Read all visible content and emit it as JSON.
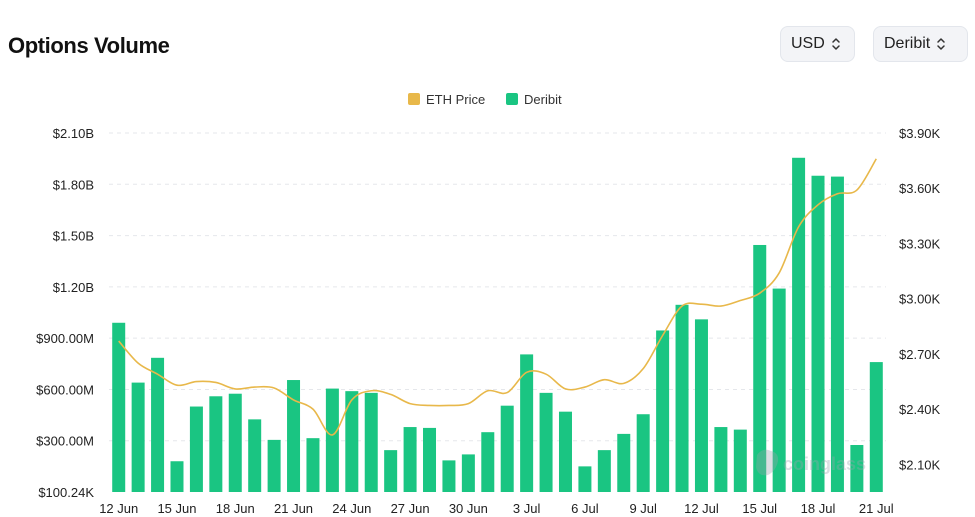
{
  "header": {
    "title": "Options Volume"
  },
  "controls": {
    "currency": "USD",
    "exchange": "Deribit"
  },
  "colors": {
    "bar": "#1ac582",
    "line": "#e8b84a",
    "grid": "#e5e7eb",
    "axis_text": "#222222"
  },
  "icons": {
    "selector": "chevron-up-down-icon"
  },
  "watermark": "coinglass",
  "chart_data": {
    "type": "bar",
    "legend_position": "top-center",
    "grid": true,
    "legend": [
      {
        "label": "ETH Price",
        "color": "#e8b84a"
      },
      {
        "label": "Deribit",
        "color": "#1ac582"
      }
    ],
    "left_axis": {
      "ylim": [
        100240,
        2100000000
      ],
      "ticks": [
        100240,
        300000000,
        600000000,
        900000000,
        1200000000,
        1500000000,
        1800000000,
        2100000000
      ],
      "tick_labels": [
        "$100.24K",
        "$300.00M",
        "$600.00M",
        "$900.00M",
        "$1.20B",
        "$1.50B",
        "$1.80B",
        "$2.10B"
      ]
    },
    "right_axis": {
      "ylim": [
        1950,
        3900
      ],
      "ticks": [
        2100,
        2400,
        2700,
        3000,
        3300,
        3600,
        3900
      ],
      "tick_labels": [
        "$2.10K",
        "$2.40K",
        "$2.70K",
        "$3.00K",
        "$3.30K",
        "$3.60K",
        "$3.90K"
      ]
    },
    "x_tick_labels": [
      "12 Jun",
      "15 Jun",
      "18 Jun",
      "21 Jun",
      "24 Jun",
      "27 Jun",
      "30 Jun",
      "3 Jul",
      "6 Jul",
      "9 Jul",
      "12 Jul",
      "15 Jul",
      "18 Jul",
      "21 Jul"
    ],
    "categories": [
      "12 Jun",
      "13 Jun",
      "14 Jun",
      "15 Jun",
      "16 Jun",
      "17 Jun",
      "18 Jun",
      "19 Jun",
      "20 Jun",
      "21 Jun",
      "22 Jun",
      "23 Jun",
      "24 Jun",
      "25 Jun",
      "26 Jun",
      "27 Jun",
      "28 Jun",
      "29 Jun",
      "30 Jun",
      "1 Jul",
      "2 Jul",
      "3 Jul",
      "4 Jul",
      "5 Jul",
      "6 Jul",
      "7 Jul",
      "8 Jul",
      "9 Jul",
      "10 Jul",
      "11 Jul",
      "12 Jul",
      "13 Jul",
      "14 Jul",
      "15 Jul",
      "16 Jul",
      "17 Jul",
      "18 Jul",
      "19 Jul",
      "20 Jul",
      "21 Jul"
    ],
    "series": [
      {
        "name": "Deribit",
        "type": "bar",
        "axis": "left",
        "values": [
          990000000,
          640000000,
          785000000,
          180000000,
          500000000,
          560000000,
          575000000,
          425000000,
          305000000,
          655000000,
          315000000,
          605000000,
          590000000,
          580000000,
          245000000,
          380000000,
          375000000,
          185000000,
          220000000,
          350000000,
          505000000,
          805000000,
          580000000,
          470000000,
          150000000,
          245000000,
          340000000,
          455000000,
          945000000,
          1095000000,
          1010000000,
          380000000,
          365000000,
          1445000000,
          1190000000,
          1955000000,
          1850000000,
          1845000000,
          275000000,
          760000000
        ]
      },
      {
        "name": "ETH Price",
        "type": "line",
        "axis": "right",
        "values": [
          2770,
          2650,
          2590,
          2530,
          2550,
          2545,
          2510,
          2520,
          2515,
          2450,
          2400,
          2260,
          2450,
          2500,
          2480,
          2430,
          2420,
          2420,
          2430,
          2500,
          2490,
          2600,
          2590,
          2510,
          2520,
          2560,
          2540,
          2620,
          2800,
          2960,
          2970,
          2960,
          2990,
          3030,
          3140,
          3390,
          3510,
          3570,
          3590,
          3760
        ]
      }
    ]
  }
}
